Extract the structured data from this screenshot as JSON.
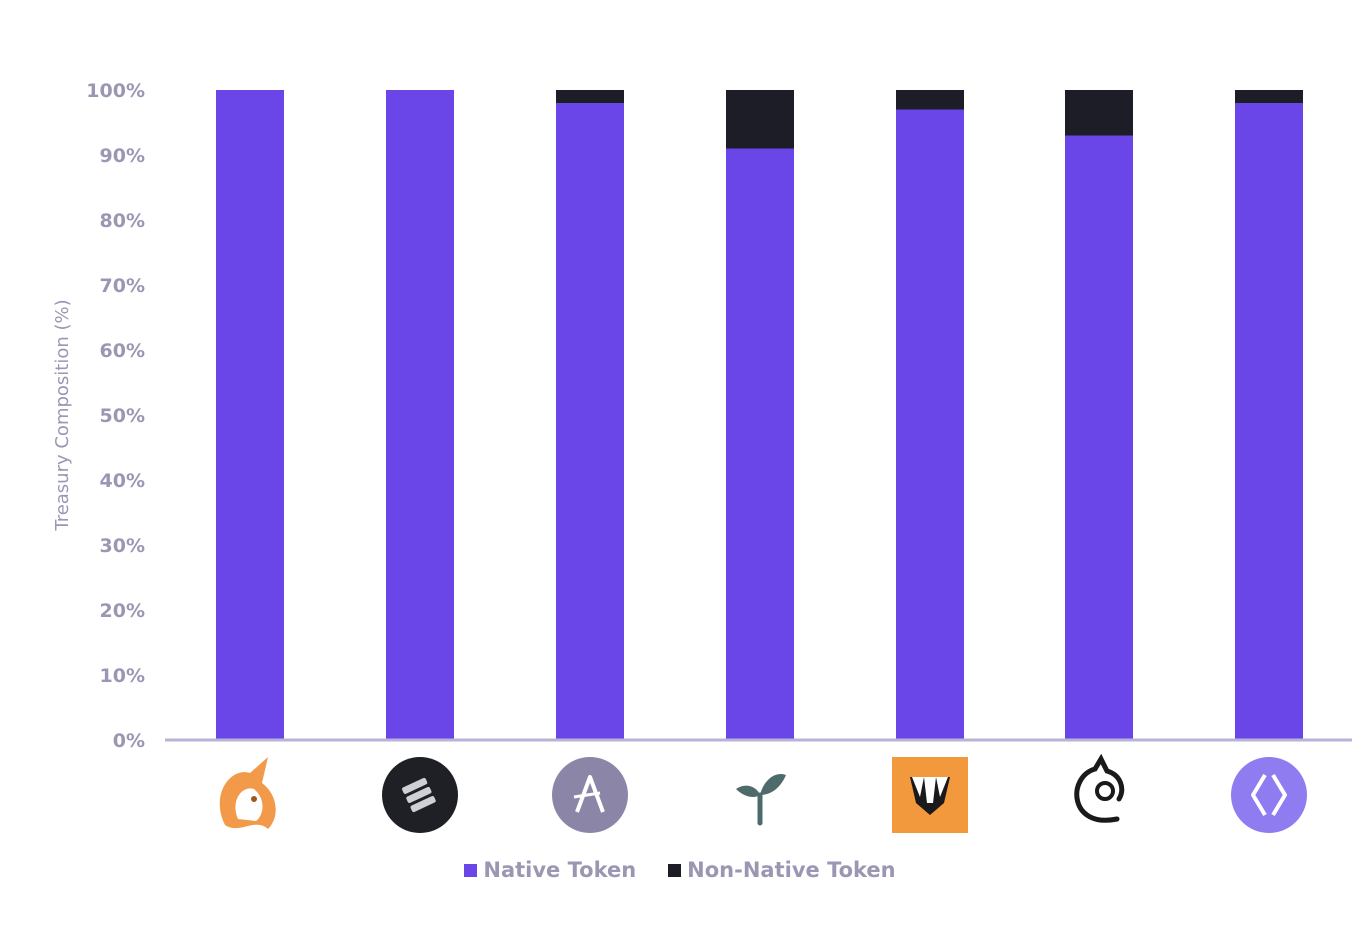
{
  "colors": {
    "native": "#6a45e8",
    "non_native": "#1c1d26",
    "axis": "#b8b3d8",
    "text": "#9a97b3"
  },
  "logos": [
    {
      "name": "unicorn-logo-icon",
      "bg": "#ffffff",
      "fg": "#f2994a"
    },
    {
      "name": "layers-logo-icon",
      "bg": "#1e2026",
      "fg": "#cfcfd6"
    },
    {
      "name": "a-letter-logo-icon",
      "bg": "#8b86a8",
      "fg": "#ffffff"
    },
    {
      "name": "sprout-logo-icon",
      "bg": "#ffffff",
      "fg": "#4e6b6b"
    },
    {
      "name": "badger-logo-icon",
      "bg": "#f2993e",
      "fg": "#1a1a1a"
    },
    {
      "name": "horse-head-logo-icon",
      "bg": "#ffffff",
      "fg": "#1a1a1a"
    },
    {
      "name": "diamond-logo-icon",
      "bg": "#8e7cf0",
      "fg": "#ffffff"
    }
  ],
  "chart_data": {
    "type": "bar",
    "stacked": true,
    "categories": [
      "",
      "",
      "",
      "",
      "",
      "",
      ""
    ],
    "series": [
      {
        "name": "Native Token",
        "values": [
          100,
          100,
          98,
          91,
          97,
          93,
          98
        ]
      },
      {
        "name": "Non-Native Token",
        "values": [
          0,
          0,
          2,
          9,
          3,
          7,
          2
        ]
      }
    ],
    "ylabel": "Treasury Composition (%)",
    "xlabel": "",
    "ylim": [
      0,
      100
    ],
    "yticks": [
      "0%",
      "10%",
      "20%",
      "30%",
      "40%",
      "50%",
      "60%",
      "70%",
      "80%",
      "90%",
      "100%"
    ],
    "grid": false,
    "legend_position": "bottom-center"
  }
}
